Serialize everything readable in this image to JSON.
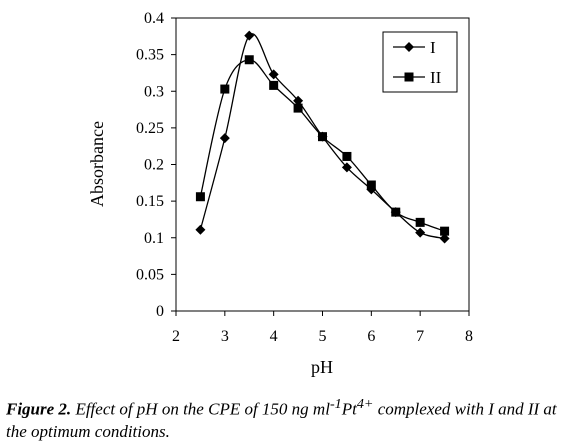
{
  "chart_data": {
    "type": "line",
    "xlabel": "pH",
    "ylabel": "Absorbance",
    "xlim": [
      2,
      8
    ],
    "ylim": [
      0,
      0.4
    ],
    "xticks": [
      "2",
      "3",
      "4",
      "5",
      "6",
      "7",
      "8"
    ],
    "yticks": [
      "0",
      "0.05",
      "0.1",
      "0.15",
      "0.2",
      "0.25",
      "0.3",
      "0.35",
      "0.4"
    ],
    "grid": false,
    "legend_position": "top-right",
    "series": [
      {
        "name": "I",
        "marker": "diamond",
        "color": "#000000",
        "x": [
          2.5,
          3.0,
          3.5,
          4.0,
          4.5,
          5.0,
          5.5,
          6.0,
          6.5,
          7.0,
          7.5
        ],
        "y": [
          0.111,
          0.236,
          0.376,
          0.323,
          0.287,
          0.238,
          0.196,
          0.166,
          0.135,
          0.107,
          0.099
        ]
      },
      {
        "name": "II",
        "marker": "square",
        "color": "#000000",
        "x": [
          2.5,
          3.0,
          3.5,
          4.0,
          4.5,
          5.0,
          5.5,
          6.0,
          6.5,
          7.0,
          7.5
        ],
        "y": [
          0.156,
          0.303,
          0.343,
          0.308,
          0.277,
          0.238,
          0.211,
          0.172,
          0.135,
          0.121,
          0.109
        ]
      }
    ]
  },
  "caption": {
    "lead": "Figure 2.",
    "text": " Effect of pH on the CPE of 150 ng ml",
    "sup1": "-1",
    "mid": "Pt",
    "sup2": "4+",
    "tail": " complexed with   I and II at the optimum conditions."
  }
}
